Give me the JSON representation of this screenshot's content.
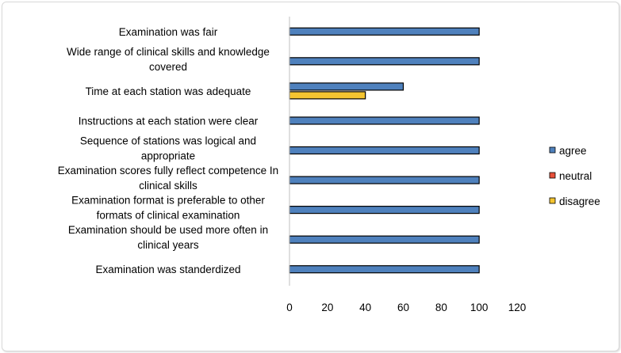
{
  "chart_data": {
    "type": "bar",
    "orientation": "horizontal",
    "categories": [
      "Examination was fair",
      "Wide range of clinical skills and knowledge covered",
      "Time at each station was adequate",
      "Instructions at each station were clear",
      "Sequence of stations was logical and appropriate",
      "Examination scores fully reflect competence In clinical skills",
      "Examination format is preferable to other formats of clinical examination",
      "Examination should be used more often in clinical years",
      "Examination was standerdized"
    ],
    "category_label_lines": [
      [
        "Examination was fair"
      ],
      [
        "Wide range of clinical skills and knowledge",
        "covered"
      ],
      [
        "Time at each station was adequate"
      ],
      [
        "Instructions at each station were clear"
      ],
      [
        "Sequence of stations was logical and",
        "appropriate"
      ],
      [
        "Examination scores fully reflect competence In",
        "clinical skills"
      ],
      [
        "Examination format is preferable to other",
        "formats of clinical examination"
      ],
      [
        "Examination should be used more often in",
        "clinical years"
      ],
      [
        "Examination was standerdized"
      ]
    ],
    "series": [
      {
        "name": "agree",
        "color": "#4f81bd",
        "values": [
          100,
          100,
          60,
          100,
          100,
          100,
          100,
          100,
          100
        ]
      },
      {
        "name": "neutral",
        "color": "#e8503a",
        "values": [
          0,
          0,
          0,
          0,
          0,
          0,
          0,
          0,
          0
        ]
      },
      {
        "name": "disagree",
        "color": "#f4c430",
        "values": [
          0,
          0,
          40,
          0,
          0,
          0,
          0,
          0,
          0
        ]
      }
    ],
    "xlim": [
      0,
      120
    ],
    "xticks": [
      0,
      20,
      40,
      60,
      80,
      100,
      120
    ],
    "grid": false,
    "legend_position": "right",
    "title": "",
    "xlabel": "",
    "ylabel": ""
  }
}
